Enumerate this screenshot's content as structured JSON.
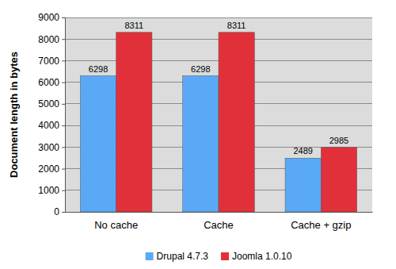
{
  "chart_data": {
    "type": "bar",
    "categories": [
      "No cache",
      "Cache",
      "Cache + gzip"
    ],
    "series": [
      {
        "name": "Drupal 4.7.3",
        "color": "#5aa9f6",
        "values": [
          6298,
          6298,
          2489
        ]
      },
      {
        "name": "Joomla 1.0.10",
        "color": "#e2303a",
        "values": [
          8311,
          8311,
          2985
        ]
      }
    ],
    "ylabel": "Document length in bytes",
    "ylim": [
      0,
      9000
    ],
    "yticks": [
      0,
      1000,
      2000,
      3000,
      4000,
      5000,
      6000,
      7000,
      8000,
      9000
    ],
    "grid": true,
    "legend": "bottom",
    "data_labels": true
  }
}
